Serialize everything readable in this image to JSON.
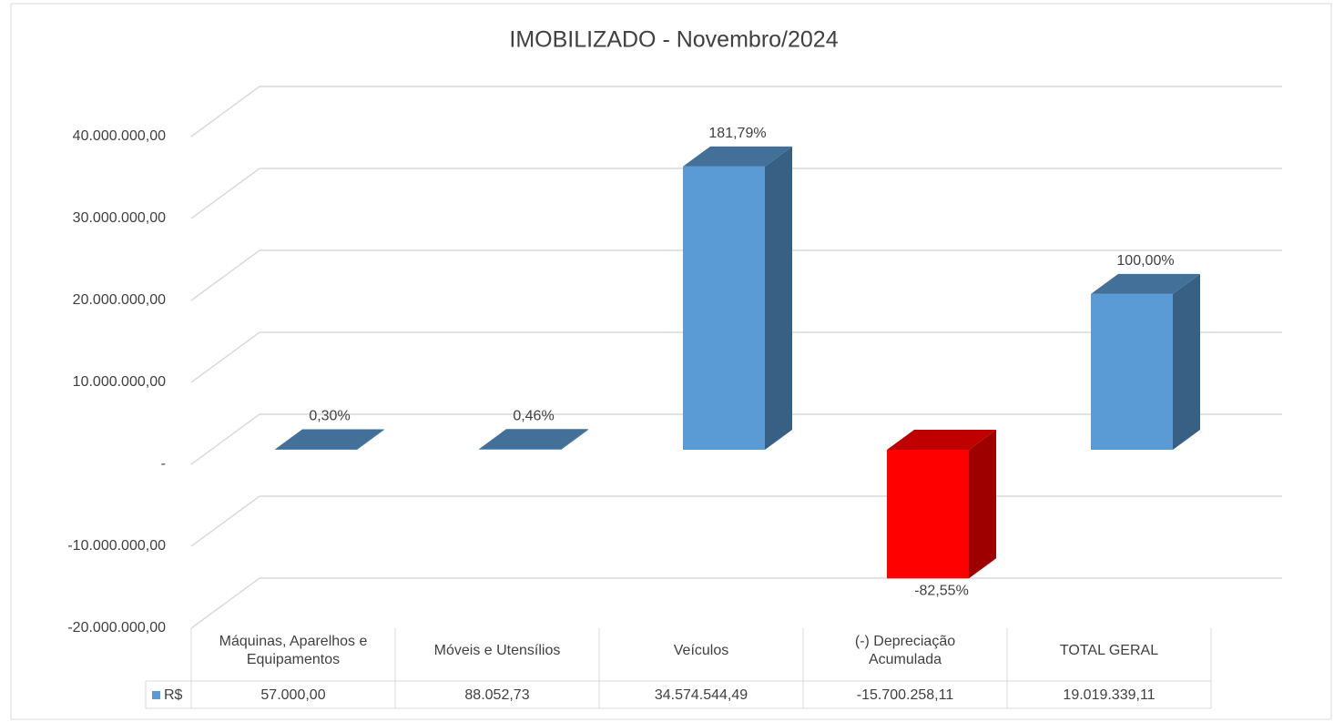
{
  "chart_data": {
    "type": "bar3d",
    "title": "IMOBILIZADO - Novembro/2024",
    "categories": [
      "Máquinas, Aparelhos e Equipamentos",
      "Móveis e Utensílios",
      "Veículos",
      "(-) Depreciação Acumulada",
      "TOTAL GERAL"
    ],
    "series": [
      {
        "name": "R$",
        "color": "#5b9bd5",
        "negative_color": "#ff0000",
        "values": [
          57000,
          88052.73,
          34574544.49,
          -15700258.11,
          19019339.11
        ],
        "value_labels": [
          "57.000,00",
          "88.052,73",
          "34.574.544,49",
          "-15.700.258,11",
          "19.019.339,11"
        ],
        "shares": [
          0.3,
          0.46,
          181.79,
          -82.55,
          100.0
        ],
        "share_labels": [
          "0,30%",
          "0,46%",
          "181,79%",
          "-82,55%",
          "100,00%"
        ]
      }
    ],
    "ylim": [
      -20000000,
      40000000
    ],
    "yticks": [
      {
        "value": -20000000,
        "label": "-20.000.000,00"
      },
      {
        "value": -10000000,
        "label": "-10.000.000,00"
      },
      {
        "value": 0,
        "label": "-"
      },
      {
        "value": 10000000,
        "label": "10.000.000,00"
      },
      {
        "value": 20000000,
        "label": "20.000.000,00"
      },
      {
        "value": 30000000,
        "label": "30.000.000,00"
      },
      {
        "value": 40000000,
        "label": "40.000.000,00"
      }
    ],
    "grid": true,
    "data_table": true
  }
}
